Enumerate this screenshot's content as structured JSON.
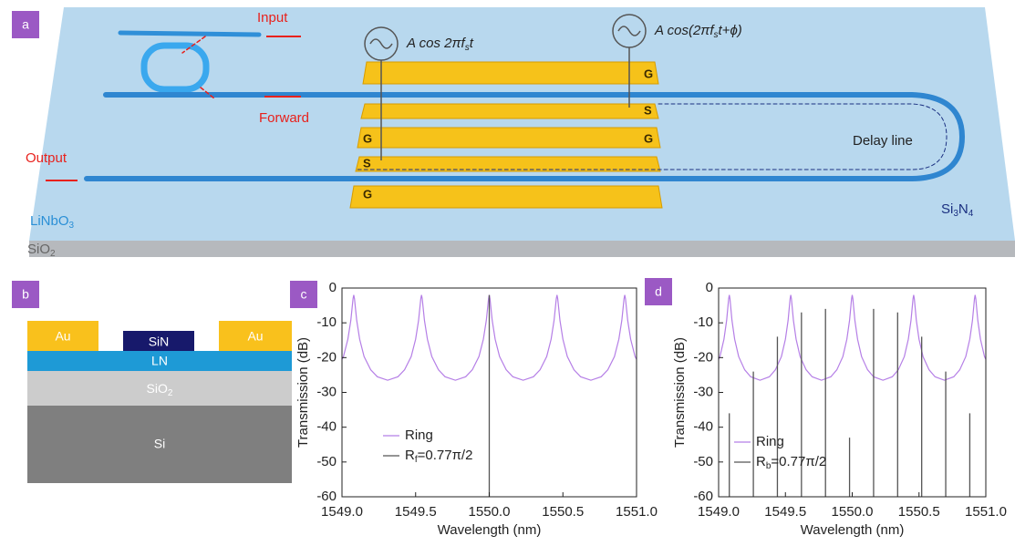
{
  "panel_a": {
    "label": "a",
    "input": "Input",
    "forward": "Forward",
    "output": "Output",
    "source_1": [
      "A cos 2πf",
      "s",
      "t"
    ],
    "source_2": [
      "A cos(2πf",
      "s",
      "t+ϕ)"
    ],
    "ground_labels": [
      "G",
      "G",
      "G",
      "G"
    ],
    "signal_labels": [
      "S",
      "S"
    ],
    "delay_line": "Delay line",
    "substrate": [
      "LiNbO",
      "3"
    ],
    "cladding": [
      "SiO",
      "2"
    ],
    "waveguide": [
      "Si",
      "3",
      "N",
      "4"
    ]
  },
  "panel_b": {
    "label": "b",
    "au_left": "Au",
    "sin": "SiN",
    "au_right": "Au",
    "ln": "LN",
    "sio2": [
      "SiO",
      "2"
    ],
    "si": "Si"
  },
  "chart_data": [
    {
      "type": "line",
      "panel_label": "c",
      "xlabel": "Wavelength (nm)",
      "ylabel": "Transmission (dB)",
      "xlim": [
        1549.0,
        1551.0
      ],
      "ylim": [
        -60,
        0
      ],
      "xticks": [
        {
          "value": 1549,
          "label": "1549.0"
        },
        1549.5,
        {
          "value": 1550,
          "label": "1550.0"
        },
        1550.5,
        {
          "value": 1551,
          "label": "1551.0"
        }
      ],
      "yticks": [
        0,
        -10,
        -20,
        -30,
        -40,
        -50,
        -60
      ],
      "series": [
        {
          "name": [
            "Ring"
          ],
          "color": "#b57fe6",
          "mode": "line",
          "x": [
            1549.0,
            1549.01,
            1549.04,
            1549.06,
            1549.07,
            1549.075,
            1549.08,
            1549.085,
            1549.09,
            1549.1,
            1549.12,
            1549.15,
            1549.195,
            1549.24,
            1549.31,
            1549.38,
            1549.425,
            1549.47,
            1549.5,
            1549.52,
            1549.53,
            1549.535,
            1549.54,
            1549.545,
            1549.55,
            1549.56,
            1549.58,
            1549.61,
            1549.655,
            1549.7,
            1549.77,
            1549.84,
            1549.885,
            1549.93,
            1549.96,
            1549.98,
            1549.99,
            1549.995,
            1550.0,
            1550.005,
            1550.01,
            1550.02,
            1550.04,
            1550.07,
            1550.115,
            1550.16,
            1550.23,
            1550.3,
            1550.345,
            1550.39,
            1550.42,
            1550.44,
            1550.45,
            1550.455,
            1550.46,
            1550.465,
            1550.47,
            1550.48,
            1550.5,
            1550.53,
            1550.575,
            1550.62,
            1550.69,
            1550.76,
            1550.805,
            1550.85,
            1550.88,
            1550.9,
            1550.91,
            1550.915,
            1550.92,
            1550.925,
            1550.93,
            1550.94,
            1550.96,
            1550.99,
            1551.0
          ],
          "values": [
            -20.5,
            -19.7,
            -14.7,
            -9.3,
            -5.2,
            -3.1,
            -2,
            -3.1,
            -5.2,
            -9.3,
            -14.7,
            -19.7,
            -23.5,
            -25.5,
            -26.5,
            -25.5,
            -23.5,
            -19.7,
            -14.7,
            -9.3,
            -5.2,
            -3.1,
            -2,
            -3.1,
            -5.2,
            -9.3,
            -14.7,
            -19.7,
            -23.5,
            -25.5,
            -26.5,
            -25.5,
            -23.5,
            -19.7,
            -14.7,
            -9.3,
            -5.2,
            -3.1,
            -2,
            -3.1,
            -5.2,
            -9.3,
            -14.7,
            -19.7,
            -23.5,
            -25.5,
            -26.5,
            -25.5,
            -23.5,
            -19.7,
            -14.7,
            -9.3,
            -5.2,
            -3.1,
            -2,
            -3.1,
            -5.2,
            -9.3,
            -14.7,
            -19.7,
            -23.5,
            -25.5,
            -26.5,
            -25.5,
            -23.5,
            -19.7,
            -14.7,
            -9.3,
            -5.2,
            -3.1,
            -2,
            -3.1,
            -5.2,
            -9.3,
            -14.7,
            -19.7,
            -20.5
          ]
        },
        {
          "name": [
            "R",
            "f",
            "=0.77π/2"
          ],
          "color": "#555555",
          "mode": "stem",
          "x": [
            1550.0
          ],
          "values": [
            -2
          ]
        }
      ]
    },
    {
      "type": "line",
      "panel_label": "d",
      "xlabel": "Wavelength (nm)",
      "ylabel": "Transmission (dB)",
      "xlim": [
        1549.0,
        1551.0
      ],
      "ylim": [
        -60,
        0
      ],
      "xticks": [
        {
          "value": 1549,
          "label": "1549.0"
        },
        1549.5,
        {
          "value": 1550,
          "label": "1550.0"
        },
        1550.5,
        {
          "value": 1551,
          "label": "1551.0"
        }
      ],
      "yticks": [
        0,
        -10,
        -20,
        -30,
        -40,
        -50,
        -60
      ],
      "series": [
        {
          "name": [
            "Ring"
          ],
          "color": "#b57fe6",
          "mode": "line",
          "x": [
            1549.0,
            1549.01,
            1549.04,
            1549.06,
            1549.07,
            1549.075,
            1549.08,
            1549.085,
            1549.09,
            1549.1,
            1549.12,
            1549.15,
            1549.195,
            1549.24,
            1549.31,
            1549.38,
            1549.425,
            1549.47,
            1549.5,
            1549.52,
            1549.53,
            1549.535,
            1549.54,
            1549.545,
            1549.55,
            1549.56,
            1549.58,
            1549.61,
            1549.655,
            1549.7,
            1549.77,
            1549.84,
            1549.885,
            1549.93,
            1549.96,
            1549.98,
            1549.99,
            1549.995,
            1550.0,
            1550.005,
            1550.01,
            1550.02,
            1550.04,
            1550.07,
            1550.115,
            1550.16,
            1550.23,
            1550.3,
            1550.345,
            1550.39,
            1550.42,
            1550.44,
            1550.45,
            1550.455,
            1550.46,
            1550.465,
            1550.47,
            1550.48,
            1550.5,
            1550.53,
            1550.575,
            1550.62,
            1550.69,
            1550.76,
            1550.805,
            1550.85,
            1550.88,
            1550.9,
            1550.91,
            1550.915,
            1550.92,
            1550.925,
            1550.93,
            1550.94,
            1550.96,
            1550.99,
            1551.0
          ],
          "values": [
            -20.5,
            -19.7,
            -14.7,
            -9.3,
            -5.2,
            -3.1,
            -2,
            -3.1,
            -5.2,
            -9.3,
            -14.7,
            -19.7,
            -23.5,
            -25.5,
            -26.5,
            -25.5,
            -23.5,
            -19.7,
            -14.7,
            -9.3,
            -5.2,
            -3.1,
            -2,
            -3.1,
            -5.2,
            -9.3,
            -14.7,
            -19.7,
            -23.5,
            -25.5,
            -26.5,
            -25.5,
            -23.5,
            -19.7,
            -14.7,
            -9.3,
            -5.2,
            -3.1,
            -2,
            -3.1,
            -5.2,
            -9.3,
            -14.7,
            -19.7,
            -23.5,
            -25.5,
            -26.5,
            -25.5,
            -23.5,
            -19.7,
            -14.7,
            -9.3,
            -5.2,
            -3.1,
            -2,
            -3.1,
            -5.2,
            -9.3,
            -14.7,
            -19.7,
            -23.5,
            -25.5,
            -26.5,
            -25.5,
            -23.5,
            -19.7,
            -14.7,
            -9.3,
            -5.2,
            -3.1,
            -2,
            -3.1,
            -5.2,
            -9.3,
            -14.7,
            -19.7,
            -20.5
          ]
        },
        {
          "name": [
            "R",
            "b",
            "=0.77π/2"
          ],
          "color": "#555555",
          "mode": "stem",
          "x": [
            1549.08,
            1549.26,
            1549.44,
            1549.62,
            1549.8,
            1549.98,
            1550.16,
            1550.34,
            1550.52,
            1550.7,
            1550.88
          ],
          "values": [
            -36,
            -24,
            -14,
            -7,
            -6,
            -43,
            -6,
            -7,
            -14,
            -24,
            -36
          ]
        }
      ]
    }
  ]
}
